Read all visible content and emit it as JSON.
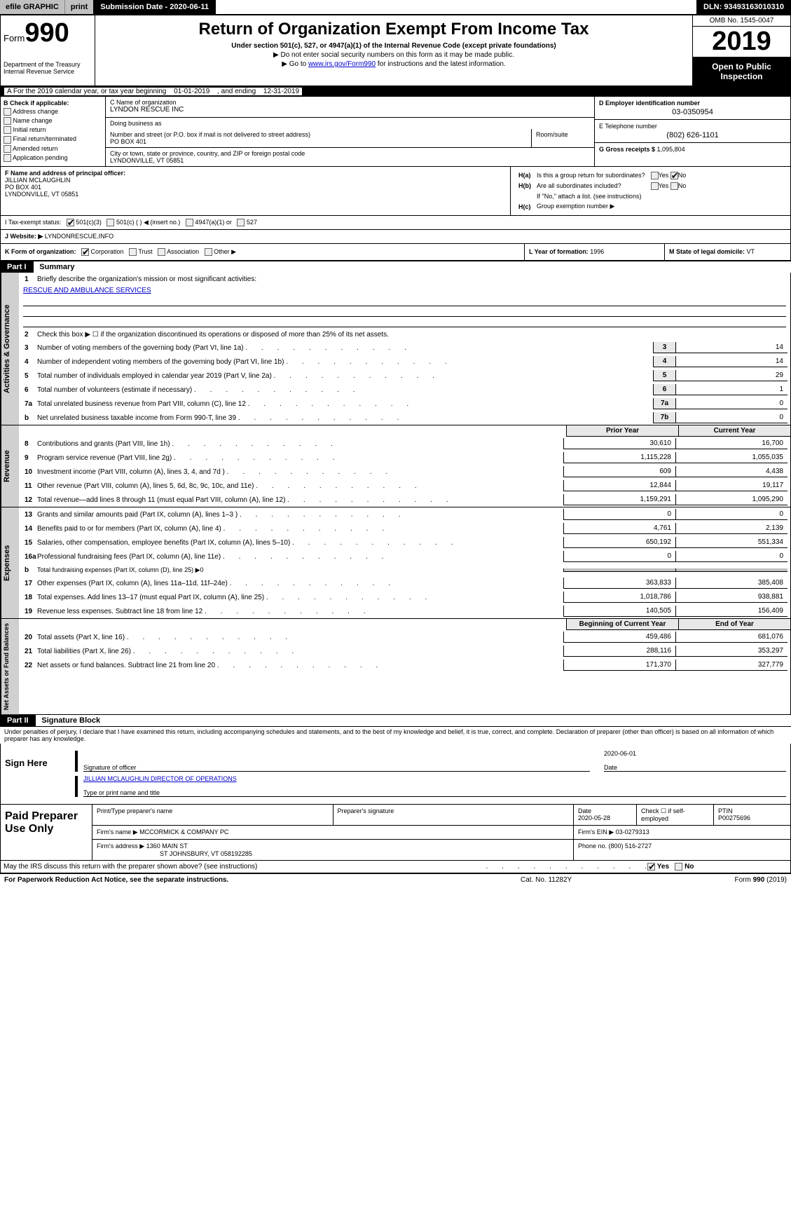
{
  "topbar": {
    "efile": "efile GRAPHIC",
    "print": "print",
    "subdate_label": "Submission Date - ",
    "subdate": "2020-06-11",
    "dln_label": "DLN: ",
    "dln": "93493163010310"
  },
  "header": {
    "form_prefix": "Form",
    "form_num": "990",
    "dept": "Department of the Treasury\nInternal Revenue Service",
    "title": "Return of Organization Exempt From Income Tax",
    "sub1": "Under section 501(c), 527, or 4947(a)(1) of the Internal Revenue Code (except private foundations)",
    "sub2": "▶ Do not enter social security numbers on this form as it may be made public.",
    "sub3_pre": "▶ Go to ",
    "sub3_link": "www.irs.gov/Form990",
    "sub3_post": " for instructions and the latest information.",
    "omb": "OMB No. 1545-0047",
    "year": "2019",
    "open": "Open to Public Inspection"
  },
  "period": {
    "text_pre": "A   For the 2019 calendar year, or tax year beginning ",
    "begin": "01-01-2019",
    "mid": " , and ending ",
    "end": "12-31-2019"
  },
  "sectionB": {
    "label": "B Check if applicable:",
    "items": [
      "Address change",
      "Name change",
      "Initial return",
      "Final return/terminated",
      "Amended return",
      "Application pending"
    ]
  },
  "sectionC": {
    "name_label": "C Name of organization",
    "name": "LYNDON RESCUE INC",
    "dba_label": "Doing business as",
    "addr_label": "Number and street (or P.O. box if mail is not delivered to street address)",
    "addr": "PO BOX 401",
    "room_label": "Room/suite",
    "city_label": "City or town, state or province, country, and ZIP or foreign postal code",
    "city": "LYNDONVILLE, VT  05851"
  },
  "sectionD": {
    "ein_label": "D Employer identification number",
    "ein": "03-0350954",
    "phone_label": "E Telephone number",
    "phone": "(802) 626-1101",
    "gross_label": "G Gross receipts $ ",
    "gross": "1,095,804"
  },
  "sectionF": {
    "label": "F Name and address of principal officer:",
    "name": "JILLIAN MCLAUGHLIN",
    "addr": "PO BOX 401",
    "city": "LYNDONVILLE, VT  05851"
  },
  "sectionH": {
    "ha_label": "H(a)",
    "ha_text": "Is this a group return for subordinates?",
    "hb_label": "H(b)",
    "hb_text": "Are all subordinates included?",
    "hb_note": "If \"No,\" attach a list. (see instructions)",
    "hc_label": "H(c)",
    "hc_text": "Group exemption number ▶",
    "yes": "Yes",
    "no": "No"
  },
  "sectionI": {
    "label": "I     Tax-exempt status:",
    "opts": [
      "501(c)(3)",
      "501(c) (  ) ◀ (insert no.)",
      "4947(a)(1) or",
      "527"
    ]
  },
  "sectionJ": {
    "label": "J    Website: ▶",
    "val": "LYNDONRESCUE.INFO"
  },
  "sectionK": {
    "label": "K Form of organization:",
    "opts": [
      "Corporation",
      "Trust",
      "Association",
      "Other ▶"
    ]
  },
  "sectionL": {
    "label": "L Year of formation: ",
    "val": "1996"
  },
  "sectionM": {
    "label": "M State of legal domicile: ",
    "val": "VT"
  },
  "part1": {
    "hdr": "Part I",
    "title": "Summary",
    "vtab1": "Activities & Governance",
    "vtab2": "Revenue",
    "vtab3": "Expenses",
    "vtab4": "Net Assets or Fund Balances",
    "l1": "Briefly describe the organization's mission or most significant activities:",
    "mission": "RESCUE AND AMBULANCE SERVICES",
    "l2": "Check this box ▶ ☐ if the organization discontinued its operations or disposed of more than 25% of its net assets.",
    "lines_gov": [
      {
        "n": "3",
        "t": "Number of voting members of the governing body (Part VI, line 1a)",
        "c": "3",
        "v": "14"
      },
      {
        "n": "4",
        "t": "Number of independent voting members of the governing body (Part VI, line 1b)",
        "c": "4",
        "v": "14"
      },
      {
        "n": "5",
        "t": "Total number of individuals employed in calendar year 2019 (Part V, line 2a)",
        "c": "5",
        "v": "29"
      },
      {
        "n": "6",
        "t": "Total number of volunteers (estimate if necessary)",
        "c": "6",
        "v": "1"
      },
      {
        "n": "7a",
        "t": "Total unrelated business revenue from Part VIII, column (C), line 12",
        "c": "7a",
        "v": "0"
      },
      {
        "n": "b",
        "t": "Net unrelated business taxable income from Form 990-T, line 39",
        "c": "7b",
        "v": "0"
      }
    ],
    "hdr_prior": "Prior Year",
    "hdr_current": "Current Year",
    "lines_rev": [
      {
        "n": "8",
        "t": "Contributions and grants (Part VIII, line 1h)",
        "p": "30,610",
        "c": "16,700"
      },
      {
        "n": "9",
        "t": "Program service revenue (Part VIII, line 2g)",
        "p": "1,115,228",
        "c": "1,055,035"
      },
      {
        "n": "10",
        "t": "Investment income (Part VIII, column (A), lines 3, 4, and 7d )",
        "p": "609",
        "c": "4,438"
      },
      {
        "n": "11",
        "t": "Other revenue (Part VIII, column (A), lines 5, 6d, 8c, 9c, 10c, and 11e)",
        "p": "12,844",
        "c": "19,117"
      },
      {
        "n": "12",
        "t": "Total revenue—add lines 8 through 11 (must equal Part VIII, column (A), line 12)",
        "p": "1,159,291",
        "c": "1,095,290"
      }
    ],
    "lines_exp": [
      {
        "n": "13",
        "t": "Grants and similar amounts paid (Part IX, column (A), lines 1–3 )",
        "p": "0",
        "c": "0"
      },
      {
        "n": "14",
        "t": "Benefits paid to or for members (Part IX, column (A), line 4)",
        "p": "4,761",
        "c": "2,139"
      },
      {
        "n": "15",
        "t": "Salaries, other compensation, employee benefits (Part IX, column (A), lines 5–10)",
        "p": "650,192",
        "c": "551,334"
      },
      {
        "n": "16a",
        "t": "Professional fundraising fees (Part IX, column (A), line 11e)",
        "p": "0",
        "c": "0"
      },
      {
        "n": "b",
        "t": "Total fundraising expenses (Part IX, column (D), line 25) ▶0",
        "p": "",
        "c": "",
        "gray": true
      },
      {
        "n": "17",
        "t": "Other expenses (Part IX, column (A), lines 11a–11d, 11f–24e)",
        "p": "363,833",
        "c": "385,408"
      },
      {
        "n": "18",
        "t": "Total expenses. Add lines 13–17 (must equal Part IX, column (A), line 25)",
        "p": "1,018,786",
        "c": "938,881"
      },
      {
        "n": "19",
        "t": "Revenue less expenses. Subtract line 18 from line 12",
        "p": "140,505",
        "c": "156,409"
      }
    ],
    "hdr_boy": "Beginning of Current Year",
    "hdr_eoy": "End of Year",
    "lines_net": [
      {
        "n": "20",
        "t": "Total assets (Part X, line 16)",
        "p": "459,486",
        "c": "681,076"
      },
      {
        "n": "21",
        "t": "Total liabilities (Part X, line 26)",
        "p": "288,116",
        "c": "353,297"
      },
      {
        "n": "22",
        "t": "Net assets or fund balances. Subtract line 21 from line 20",
        "p": "171,370",
        "c": "327,779"
      }
    ]
  },
  "part2": {
    "hdr": "Part II",
    "title": "Signature Block",
    "perjury": "Under penalties of perjury, I declare that I have examined this return, including accompanying schedules and statements, and to the best of my knowledge and belief, it is true, correct, and complete. Declaration of preparer (other than officer) is based on all information of which preparer has any knowledge.",
    "sign_here": "Sign Here",
    "sig_label": "Signature of officer",
    "sig_date": "2020-06-01",
    "date_label": "Date",
    "name_title": "JILLIAN MCLAUGHLIN  DIRECTOR OF OPERATIONS",
    "name_label": "Type or print name and title"
  },
  "paid": {
    "hdr": "Paid Preparer Use Only",
    "r1": {
      "c1_label": "Print/Type preparer's name",
      "c2_label": "Preparer's signature",
      "c3_label": "Date",
      "c3": "2020-05-28",
      "c4_label": "Check ☐ if self-employed",
      "c5_label": "PTIN",
      "c5": "P00275696"
    },
    "r2": {
      "label": "Firm's name    ▶",
      "val": "MCCORMICK & COMPANY PC",
      "ein_label": "Firm's EIN ▶",
      "ein": "03-0279313"
    },
    "r3": {
      "label": "Firm's address ▶",
      "l1": "1360 MAIN ST",
      "l2": "ST JOHNSBURY, VT  058192285",
      "ph_label": "Phone no. ",
      "ph": "(800) 516-2727"
    }
  },
  "discuss": {
    "text": "May the IRS discuss this return with the preparer shown above? (see instructions)",
    "yes": "Yes",
    "no": "No"
  },
  "footer": {
    "l": "For Paperwork Reduction Act Notice, see the separate instructions.",
    "c": "Cat. No. 11282Y",
    "r": "Form 990 (2019)"
  }
}
